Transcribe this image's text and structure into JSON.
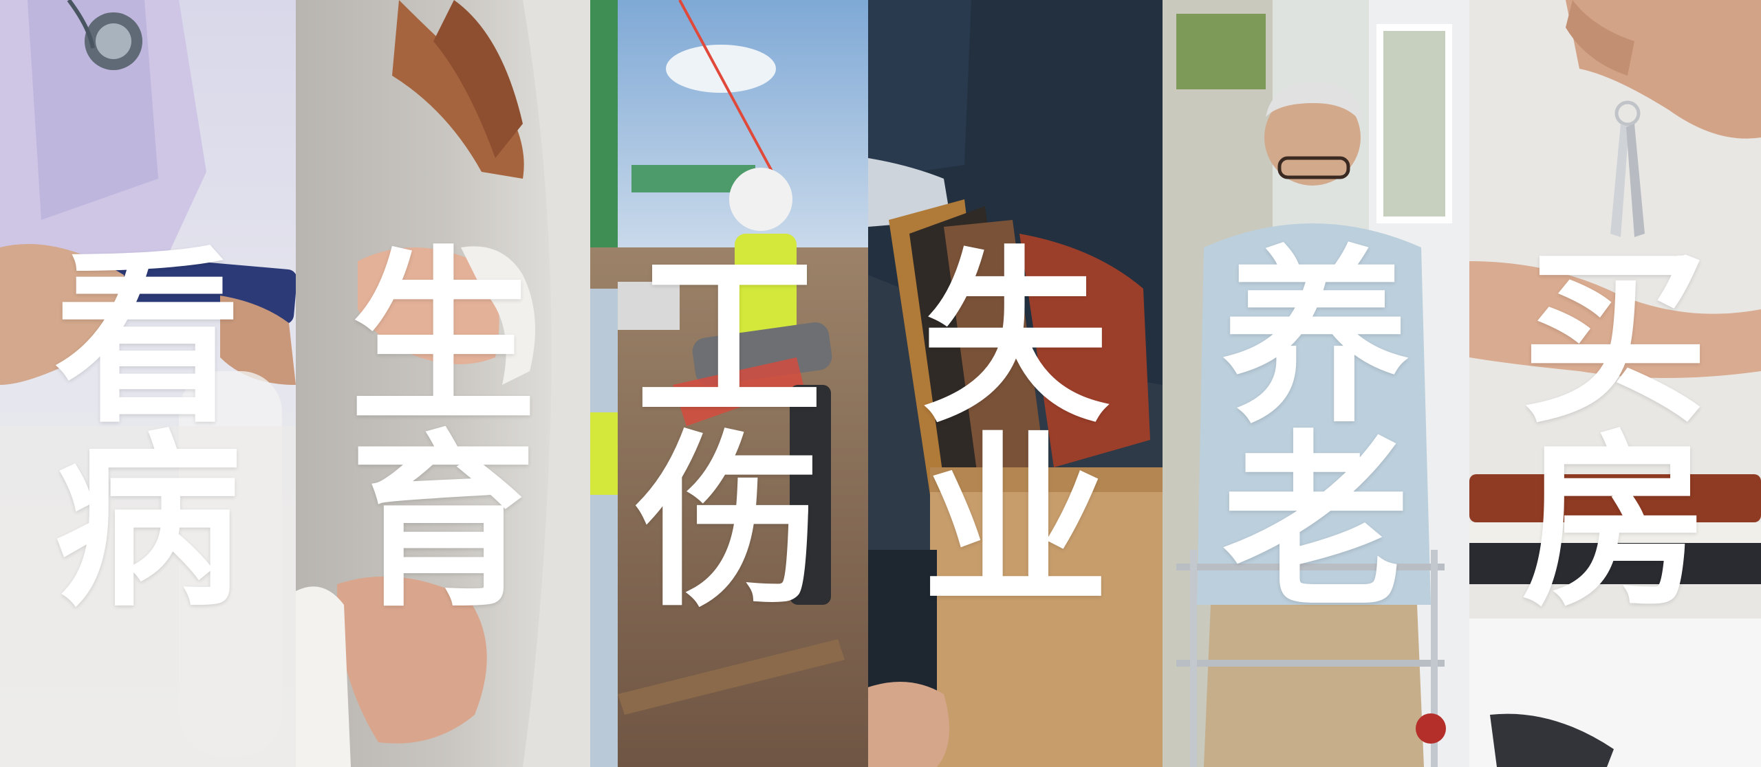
{
  "panels": [
    {
      "id": "medical",
      "chars": [
        "看",
        "病"
      ],
      "bg": "#dcdde8",
      "scene": "doctor-with-stethoscope-and-phone"
    },
    {
      "id": "childbirth",
      "chars": [
        "生",
        "育"
      ],
      "bg": "#c9c6c1",
      "scene": "pregnant-woman-in-grey-dress"
    },
    {
      "id": "work-injury",
      "chars": [
        "工",
        "伤"
      ],
      "bg": "#9fb6c8",
      "scene": "construction-workers-with-stretcher"
    },
    {
      "id": "unemployment",
      "chars": [
        "失",
        "业"
      ],
      "bg": "#33414f",
      "scene": "person-holding-box-of-office-items"
    },
    {
      "id": "elderly-care",
      "chars": [
        "养",
        "老"
      ],
      "bg": "#c9d4d8",
      "scene": "elderly-man-with-walker"
    },
    {
      "id": "home-buying",
      "chars": [
        "买",
        "房"
      ],
      "bg": "#e7e6e3",
      "scene": "hand-receiving-house-keys"
    }
  ],
  "colors": {
    "text": "#ffffff"
  }
}
